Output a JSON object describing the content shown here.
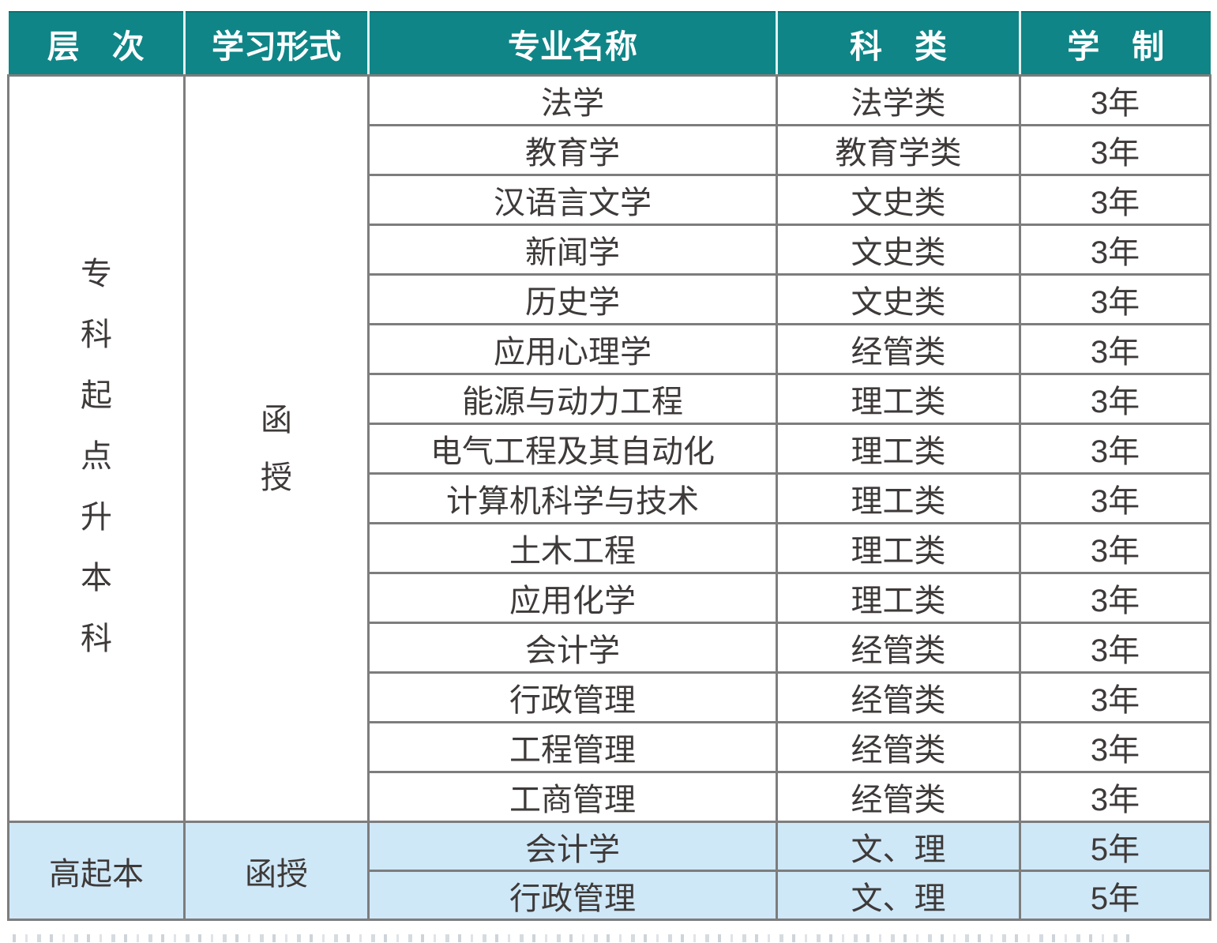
{
  "colors": {
    "header_bg": "#0f8587",
    "header_text": "#ffffff",
    "body_text": "#3e3a39",
    "border": "#7d7d7d",
    "blue_row_bg": "#cfe8f8"
  },
  "table": {
    "headers": [
      "层　次",
      "学习形式",
      "专业名称",
      "科　类",
      "学　制"
    ],
    "section1": {
      "level": "专科起点升本科",
      "level_chars": [
        "专",
        "科",
        "起",
        "点",
        "升",
        "本",
        "科"
      ],
      "form": "函授",
      "form_chars": [
        "函",
        "授"
      ],
      "rows": [
        {
          "major": "法学",
          "category": "法学类",
          "duration": "3年"
        },
        {
          "major": "教育学",
          "category": "教育学类",
          "duration": "3年"
        },
        {
          "major": "汉语言文学",
          "category": "文史类",
          "duration": "3年"
        },
        {
          "major": "新闻学",
          "category": "文史类",
          "duration": "3年"
        },
        {
          "major": "历史学",
          "category": "文史类",
          "duration": "3年"
        },
        {
          "major": "应用心理学",
          "category": "经管类",
          "duration": "3年"
        },
        {
          "major": "能源与动力工程",
          "category": "理工类",
          "duration": "3年"
        },
        {
          "major": "电气工程及其自动化",
          "category": "理工类",
          "duration": "3年"
        },
        {
          "major": "计算机科学与技术",
          "category": "理工类",
          "duration": "3年"
        },
        {
          "major": "土木工程",
          "category": "理工类",
          "duration": "3年"
        },
        {
          "major": "应用化学",
          "category": "理工类",
          "duration": "3年"
        },
        {
          "major": "会计学",
          "category": "经管类",
          "duration": "3年"
        },
        {
          "major": "行政管理",
          "category": "经管类",
          "duration": "3年"
        },
        {
          "major": "工程管理",
          "category": "经管类",
          "duration": "3年"
        },
        {
          "major": "工商管理",
          "category": "经管类",
          "duration": "3年"
        }
      ]
    },
    "section2": {
      "level": "高起本",
      "form": "函授",
      "rows": [
        {
          "major": "会计学",
          "category": "文、理",
          "duration": "5年"
        },
        {
          "major": "行政管理",
          "category": "文、理",
          "duration": "5年"
        }
      ]
    }
  }
}
